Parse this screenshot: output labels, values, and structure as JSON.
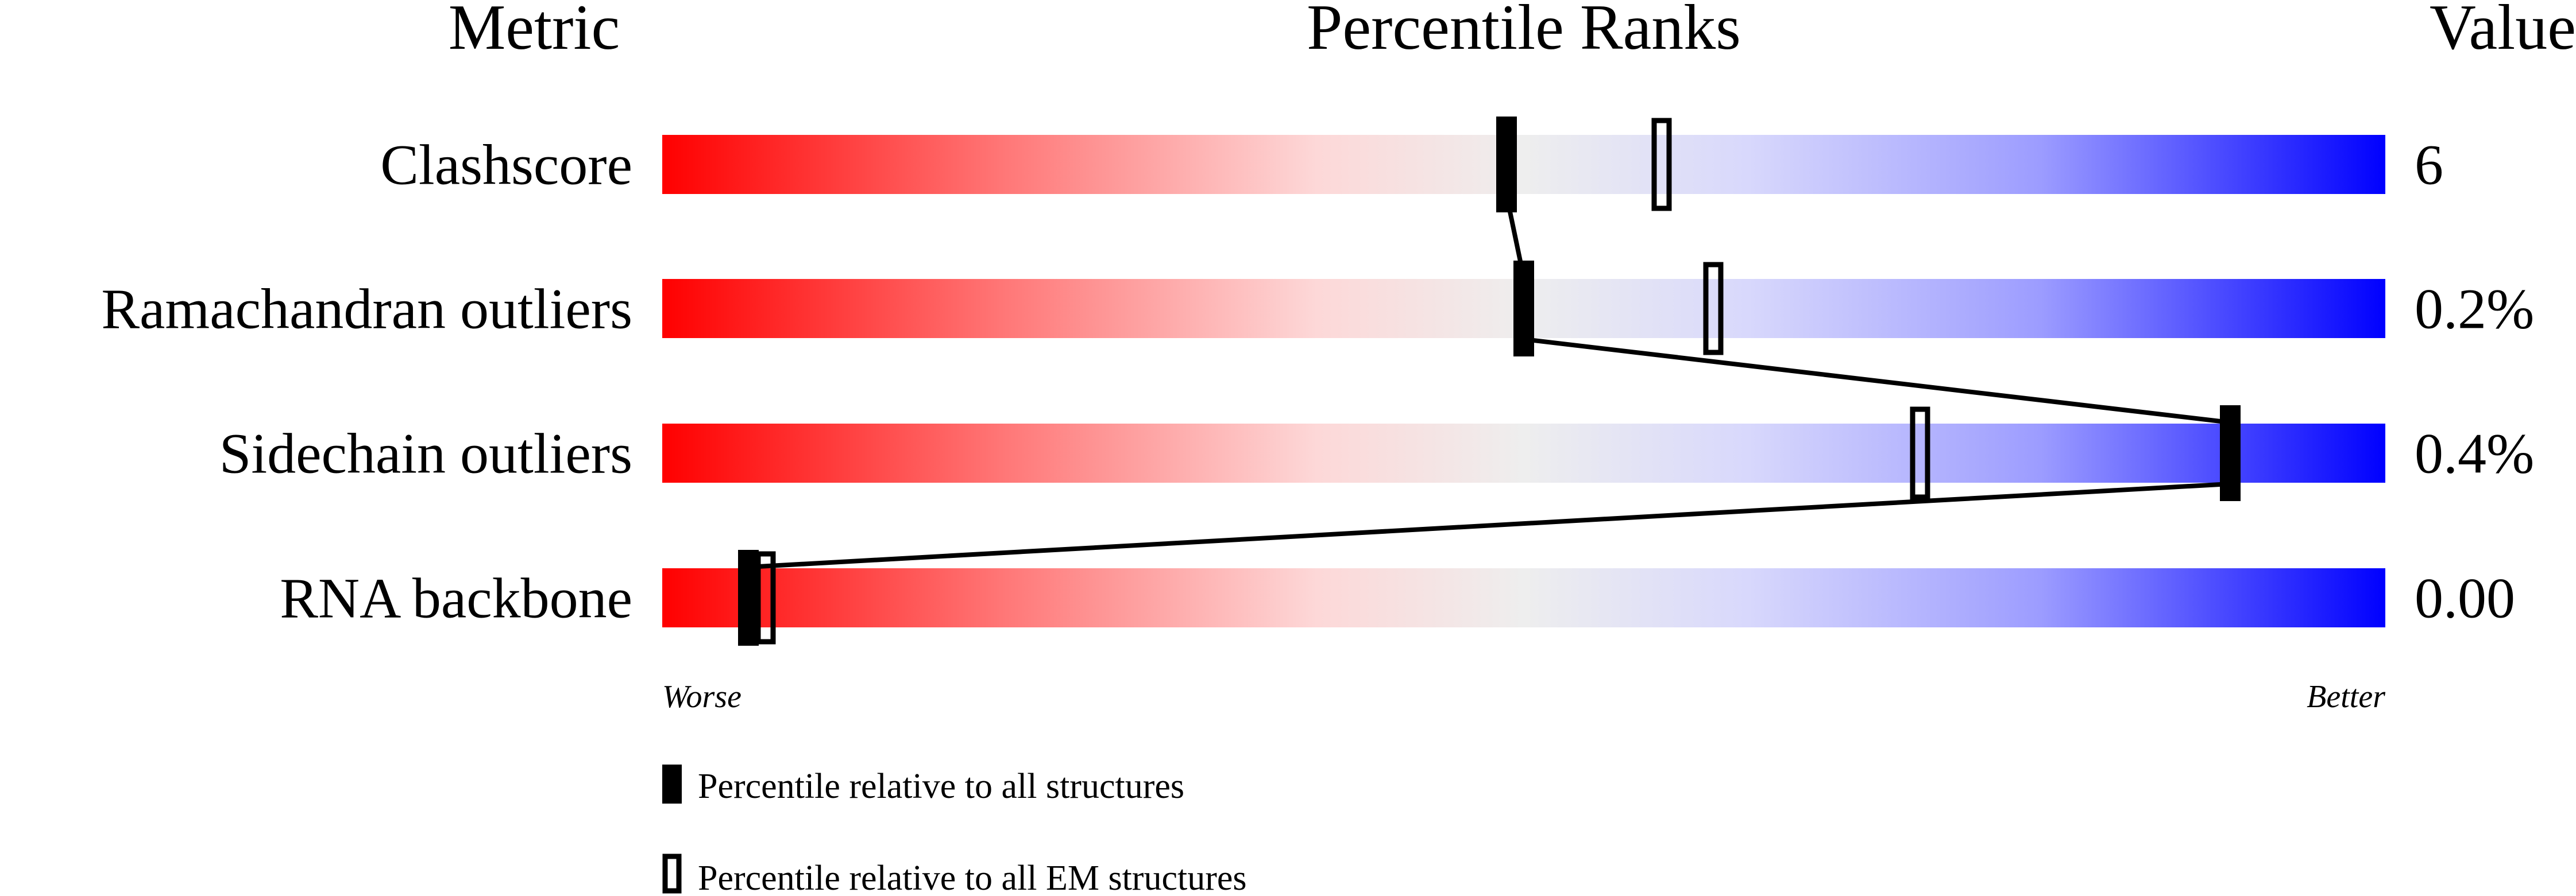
{
  "chart_data": {
    "type": "percentile-bar",
    "headers": {
      "metric": "Metric",
      "ranks": "Percentile Ranks",
      "value": "Value"
    },
    "axis": {
      "left": "Worse",
      "right": "Better",
      "range": [
        0,
        100
      ]
    },
    "colors": {
      "worse": "#ff0000",
      "middle": "#eeeeee",
      "better": "#0000ff"
    },
    "rows": [
      {
        "metric": "Clashscore",
        "value": "6",
        "percentile_all": 49,
        "percentile_em": 58
      },
      {
        "metric": "Ramachandran outliers",
        "value": "0.2%",
        "percentile_all": 50,
        "percentile_em": 61
      },
      {
        "metric": "Sidechain outliers",
        "value": "0.4%",
        "percentile_all": 91,
        "percentile_em": 73
      },
      {
        "metric": "RNA backbone",
        "value": "0.00",
        "percentile_all": 5,
        "percentile_em": 6
      }
    ],
    "legend": [
      {
        "marker": "filled",
        "label": "Percentile relative to all structures"
      },
      {
        "marker": "open",
        "label": "Percentile relative to all EM structures"
      }
    ]
  }
}
